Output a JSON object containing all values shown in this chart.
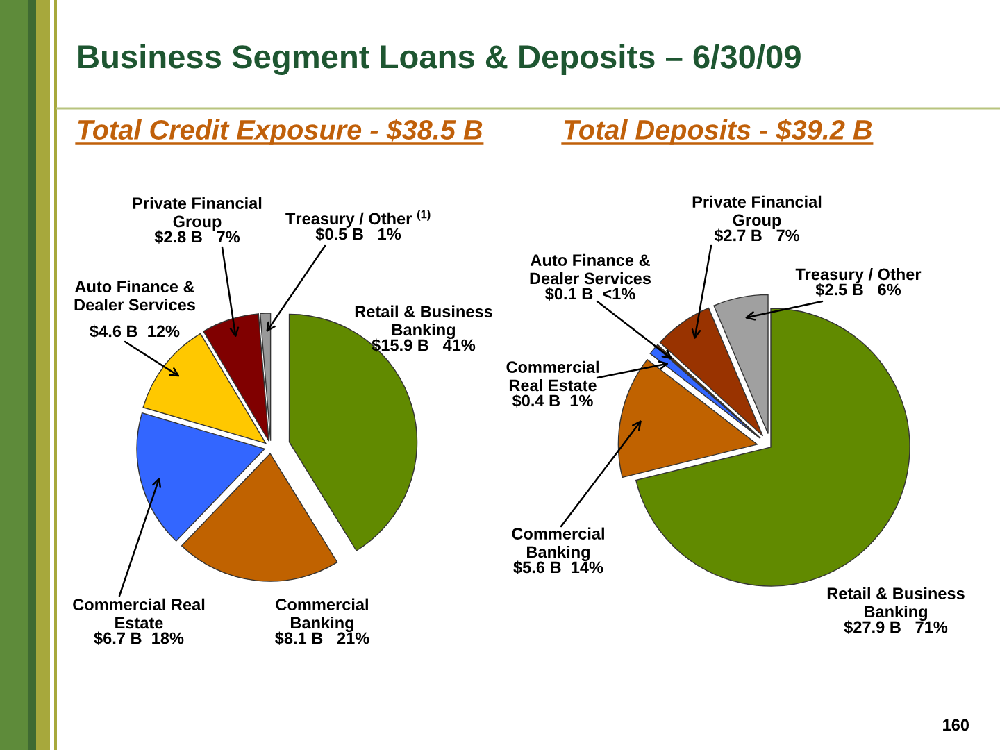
{
  "chart_data": [
    {
      "type": "pie",
      "title": "Business Segment Loans & Deposits – 6/30/09",
      "subtitle": "Total Credit Exposure - $38.5 B",
      "categories": [
        "Retail & Business\nBanking",
        "Commercial\nBanking",
        "Commercial Real\nEstate",
        "Auto Finance &\nDealer Services",
        "Private Financial\nGroup",
        "Treasury / Other $^{(1)}$"
      ],
      "values": [
        15.9,
        8.1,
        6.7,
        4.6,
        2.8,
        0.5
      ],
      "value_labels": [
        "$15.9 B   41%",
        "$8.1 B   21%",
        "$6.7 B  18%",
        "$4.6 B  12%",
        "$2.8 B   7%",
        "$0.5 B   1%"
      ],
      "colors": [
        "#618a00",
        "#c06200",
        "#3366ff",
        "#ffc800",
        "#800000",
        "#999999"
      ]
    },
    {
      "type": "pie",
      "subtitle": "Total Deposits - $39.2 B",
      "categories": [
        "Retail & Business\nBanking",
        "Commercial\nBanking",
        "Commercial\nReal Estate",
        "Auto Finance &\nDealer Services",
        "Private Financial\nGroup",
        "Treasury / Other"
      ],
      "values": [
        27.9,
        5.6,
        0.4,
        0.1,
        2.7,
        2.5
      ],
      "value_labels": [
        "$27.9 B   71%",
        "$5.6 B  14%",
        "$0.4 B  1%",
        "$0.1 B  <1%",
        "$2.7 B   7%",
        "$2.5 B   6%"
      ],
      "colors": [
        "#618a00",
        "#c06200",
        "#3366ff",
        "#663300",
        "#993300",
        "#a0a0a0"
      ],
      "annotations": [
        "160"
      ]
    }
  ]
}
